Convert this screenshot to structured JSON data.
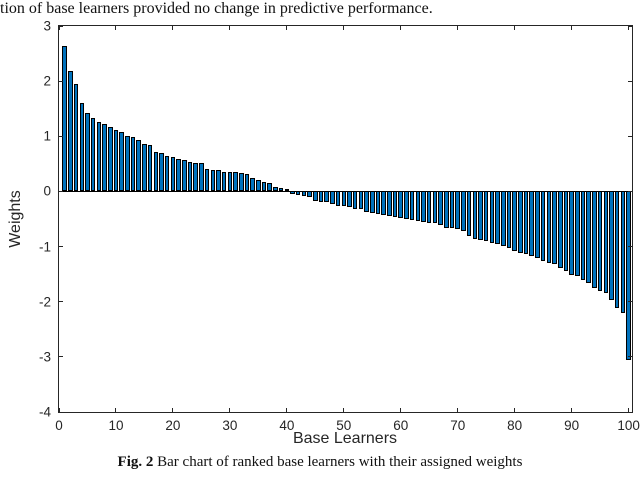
{
  "page": {
    "top_text": "tion of base learners provided no change in predictive performance.",
    "caption_prefix": "Fig. 2",
    "caption_text": " Bar chart of ranked base learners with their assigned weights"
  },
  "chart_data": {
    "type": "bar",
    "title": "",
    "xlabel": "Base Learners",
    "ylabel": "Weights",
    "xlim": [
      0,
      100.6
    ],
    "ylim": [
      -4,
      3
    ],
    "x_ticks": [
      0,
      10,
      20,
      30,
      40,
      50,
      60,
      70,
      80,
      90,
      100
    ],
    "y_ticks": [
      3,
      2,
      1,
      0,
      -1,
      -2,
      -3,
      -4
    ],
    "grid": false,
    "legend": null,
    "bar_width": 0.8,
    "bar_color": "#0072BD",
    "bar_edge_color": "#000000",
    "axis_color": "#262626",
    "x_description": "base learner rank 1-100",
    "values": [
      2.63,
      2.18,
      1.95,
      1.61,
      1.43,
      1.33,
      1.26,
      1.22,
      1.17,
      1.12,
      1.08,
      1.01,
      0.98,
      0.93,
      0.86,
      0.84,
      0.71,
      0.69,
      0.65,
      0.62,
      0.59,
      0.57,
      0.54,
      0.52,
      0.51,
      0.41,
      0.39,
      0.38,
      0.36,
      0.36,
      0.35,
      0.33,
      0.32,
      0.24,
      0.21,
      0.18,
      0.15,
      0.08,
      0.06,
      0.04,
      -0.05,
      -0.07,
      -0.08,
      -0.11,
      -0.17,
      -0.2,
      -0.2,
      -0.23,
      -0.27,
      -0.27,
      -0.29,
      -0.31,
      -0.32,
      -0.38,
      -0.4,
      -0.41,
      -0.43,
      -0.44,
      -0.46,
      -0.48,
      -0.5,
      -0.51,
      -0.53,
      -0.55,
      -0.57,
      -0.58,
      -0.61,
      -0.66,
      -0.66,
      -0.69,
      -0.72,
      -0.81,
      -0.87,
      -0.88,
      -0.9,
      -0.93,
      -0.96,
      -0.99,
      -1.02,
      -1.08,
      -1.11,
      -1.14,
      -1.17,
      -1.2,
      -1.26,
      -1.29,
      -1.32,
      -1.38,
      -1.45,
      -1.51,
      -1.54,
      -1.6,
      -1.66,
      -1.75,
      -1.81,
      -1.85,
      -1.96,
      -2.11,
      -2.2,
      -3.05
    ]
  }
}
